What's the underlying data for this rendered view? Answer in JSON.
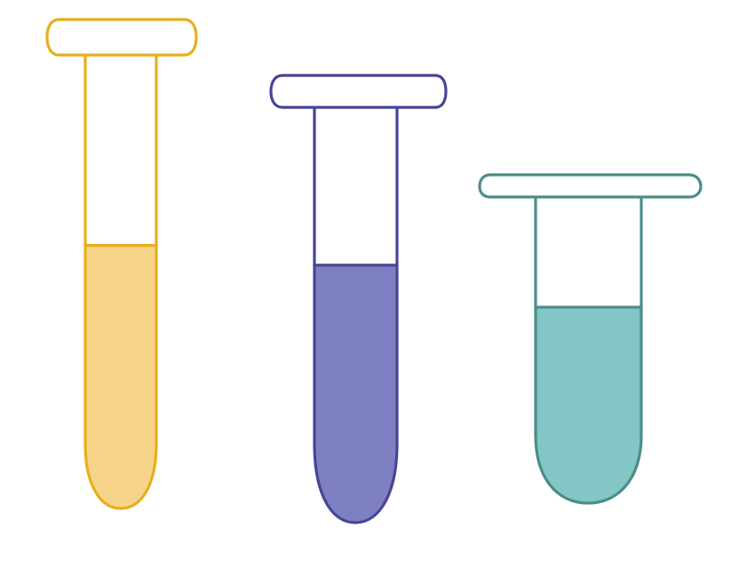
{
  "tubes": [
    {
      "id": "yellow",
      "stroke": "#E8AE1C",
      "fill": "#F6D58A",
      "fill_level": 0.58
    },
    {
      "id": "purple",
      "stroke": "#474596",
      "fill": "#7F80C1",
      "fill_level": 0.62
    },
    {
      "id": "teal",
      "stroke": "#4B8C88",
      "fill": "#82C7C5",
      "fill_level": 0.64
    }
  ]
}
